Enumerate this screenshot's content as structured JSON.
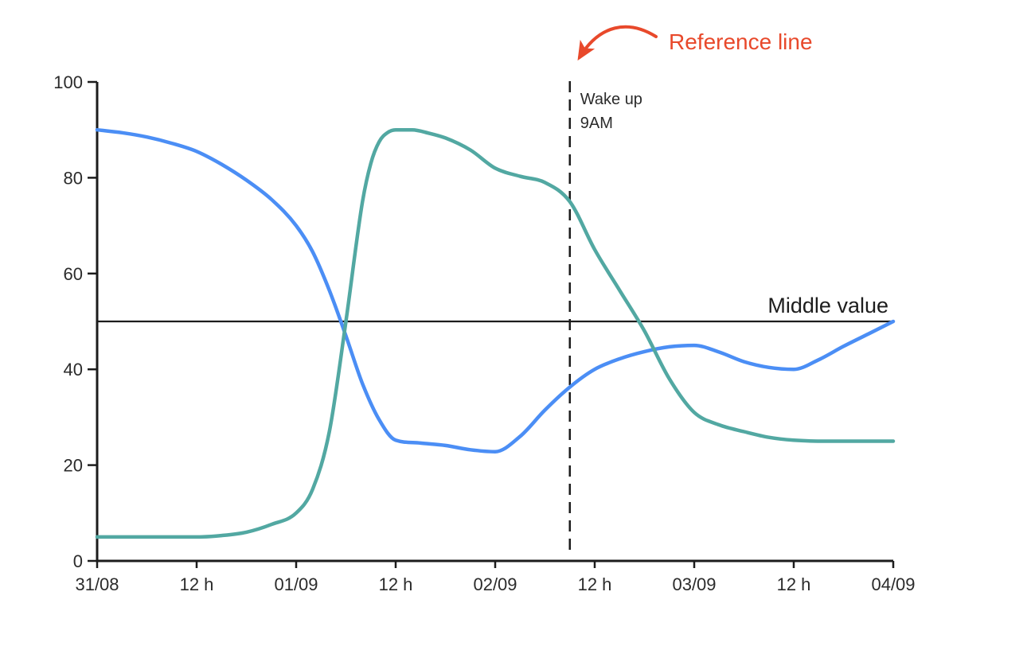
{
  "palette": {
    "background": "#ffffff",
    "axis": "#1c1c1c",
    "tick_text": "#2b2b2b",
    "annotation_red": "#e8492b",
    "series_blue": "#4b8ef5",
    "series_teal": "#52a8a2"
  },
  "chart_data": {
    "type": "line",
    "title": "",
    "grid": false,
    "legend": false,
    "x_axis": {
      "unit": "time (dd/mm and 12 h marks)",
      "range_hours": [
        0,
        96
      ],
      "ticks": [
        {
          "hour": 0,
          "label": "31/08"
        },
        {
          "hour": 12,
          "label": "12 h"
        },
        {
          "hour": 24,
          "label": "01/09"
        },
        {
          "hour": 36,
          "label": "12 h"
        },
        {
          "hour": 48,
          "label": "02/09"
        },
        {
          "hour": 60,
          "label": "12 h"
        },
        {
          "hour": 72,
          "label": "03/09"
        },
        {
          "hour": 84,
          "label": "12 h"
        },
        {
          "hour": 96,
          "label": "04/09"
        }
      ]
    },
    "y_axis": {
      "range": [
        0,
        100
      ],
      "ticks": [
        0,
        20,
        40,
        60,
        80,
        100
      ]
    },
    "series": [
      {
        "name": "blue-series",
        "color": "#4b8ef5",
        "points_hour_value": [
          [
            0,
            90
          ],
          [
            3,
            89.4
          ],
          [
            6,
            88.5
          ],
          [
            9,
            87.2
          ],
          [
            12,
            85.5
          ],
          [
            15,
            82.8
          ],
          [
            18,
            79.5
          ],
          [
            21,
            75.5
          ],
          [
            24,
            70
          ],
          [
            26,
            64.5
          ],
          [
            28,
            56.5
          ],
          [
            30,
            47
          ],
          [
            32,
            37
          ],
          [
            34,
            29.5
          ],
          [
            36,
            25.2
          ],
          [
            39,
            24.6
          ],
          [
            42,
            24.1
          ],
          [
            45,
            23.2
          ],
          [
            48,
            22.8
          ],
          [
            51,
            26
          ],
          [
            54,
            31.5
          ],
          [
            57,
            36.3
          ],
          [
            60,
            40
          ],
          [
            63,
            42.2
          ],
          [
            66,
            43.7
          ],
          [
            69,
            44.7
          ],
          [
            72,
            45
          ],
          [
            75,
            43.6
          ],
          [
            78,
            41.6
          ],
          [
            81,
            40.4
          ],
          [
            84,
            40
          ],
          [
            87,
            42
          ],
          [
            90,
            44.8
          ],
          [
            93,
            47.4
          ],
          [
            96,
            50
          ]
        ]
      },
      {
        "name": "teal-series",
        "color": "#52a8a2",
        "points_hour_value": [
          [
            0,
            5
          ],
          [
            6,
            5
          ],
          [
            12,
            5
          ],
          [
            15,
            5.3
          ],
          [
            18,
            6
          ],
          [
            21,
            7.6
          ],
          [
            24,
            10
          ],
          [
            26,
            15
          ],
          [
            28,
            27
          ],
          [
            30,
            50
          ],
          [
            32,
            75
          ],
          [
            33,
            83
          ],
          [
            34,
            87.5
          ],
          [
            35,
            89.4
          ],
          [
            36,
            90
          ],
          [
            38,
            90
          ],
          [
            40,
            89.3
          ],
          [
            42,
            88.3
          ],
          [
            45,
            85.8
          ],
          [
            48,
            82
          ],
          [
            51,
            80.3
          ],
          [
            54,
            79
          ],
          [
            57,
            75
          ],
          [
            60,
            65
          ],
          [
            63,
            56.5
          ],
          [
            66,
            48
          ],
          [
            69,
            38
          ],
          [
            72,
            31
          ],
          [
            75,
            28.4
          ],
          [
            78,
            27
          ],
          [
            81,
            25.8
          ],
          [
            84,
            25.2
          ],
          [
            88,
            25
          ],
          [
            92,
            25
          ],
          [
            96,
            25
          ]
        ]
      }
    ],
    "reference_lines": {
      "horizontal": {
        "value": 50,
        "label": "Middle value",
        "style": "solid",
        "color": "#1c1c1c"
      },
      "vertical": {
        "hour": 57,
        "labels": [
          "Wake up",
          "9AM"
        ],
        "style": "dashed",
        "color": "#1c1c1c"
      }
    },
    "annotation": {
      "text": "Reference line",
      "color": "#e8492b",
      "arrow": "curved-arrow-pointing-to-dashed-reference-line"
    }
  }
}
